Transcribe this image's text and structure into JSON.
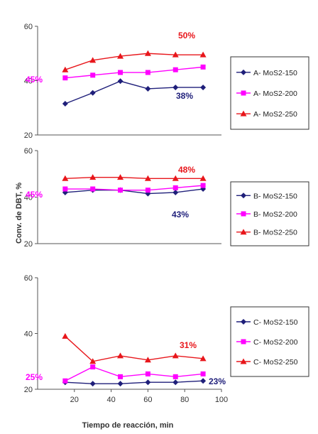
{
  "figure": {
    "ylabel": "Conv. de DBT, %",
    "xlabel": "Tiempo de reacción, min",
    "x_ticks": [
      "20",
      "40",
      "60",
      "80",
      "100"
    ]
  },
  "chart_data": [
    {
      "type": "line",
      "title": "",
      "xlim": [
        0,
        100
      ],
      "ylim": [
        20,
        60
      ],
      "yticks": [
        "60",
        "40",
        "20"
      ],
      "x": [
        15,
        30,
        45,
        60,
        75,
        90
      ],
      "series": [
        {
          "name": "A- MoS2-150",
          "color": "#1f1f7a",
          "marker": "diamond",
          "values": [
            31.5,
            35.5,
            39.8,
            37,
            37.5,
            37.5
          ]
        },
        {
          "name": "A- MoS2-200",
          "color": "#ff00ff",
          "marker": "square",
          "values": [
            41,
            42,
            43,
            43,
            44,
            45
          ]
        },
        {
          "name": "A- MoS2-250",
          "color": "#e8161b",
          "marker": "triangle",
          "values": [
            44,
            47.5,
            49,
            50,
            49.5,
            49.5
          ]
        }
      ],
      "annotations": [
        {
          "text": "50%",
          "color": "#e8161b"
        },
        {
          "text": "45%",
          "color": "#ff00ff"
        },
        {
          "text": "38%",
          "color": "#1f1f7a"
        }
      ]
    },
    {
      "type": "line",
      "title": "",
      "xlim": [
        0,
        100
      ],
      "ylim": [
        20,
        60
      ],
      "yticks": [
        "60",
        "40",
        "20"
      ],
      "x": [
        15,
        30,
        45,
        60,
        75,
        90
      ],
      "series": [
        {
          "name": "B- MoS2-150",
          "color": "#1f1f7a",
          "marker": "diamond",
          "values": [
            42,
            43,
            43,
            41.5,
            42,
            43.5
          ]
        },
        {
          "name": "B- MoS2-200",
          "color": "#ff00ff",
          "marker": "square",
          "values": [
            43.5,
            43.5,
            43,
            43,
            44,
            45
          ]
        },
        {
          "name": "B- MoS2-250",
          "color": "#e8161b",
          "marker": "triangle",
          "values": [
            48,
            48.5,
            48.5,
            48,
            48,
            48
          ]
        }
      ],
      "annotations": [
        {
          "text": "48%",
          "color": "#e8161b"
        },
        {
          "text": "45%",
          "color": "#ff00ff"
        },
        {
          "text": "43%",
          "color": "#1f1f7a"
        }
      ]
    },
    {
      "type": "line",
      "title": "",
      "xlim": [
        0,
        100
      ],
      "ylim": [
        20,
        60
      ],
      "yticks": [
        "60",
        "40",
        "20"
      ],
      "x": [
        15,
        30,
        45,
        60,
        75,
        90
      ],
      "series": [
        {
          "name": "C- MoS2-150",
          "color": "#1f1f7a",
          "marker": "diamond",
          "values": [
            22.5,
            22,
            22,
            22.5,
            22.5,
            23
          ]
        },
        {
          "name": "C- MoS2-200",
          "color": "#ff00ff",
          "marker": "square",
          "values": [
            23,
            28,
            24.5,
            25.5,
            24.5,
            25.5
          ]
        },
        {
          "name": "C- MoS2-250",
          "color": "#e8161b",
          "marker": "triangle",
          "values": [
            39,
            30,
            32,
            30.5,
            32,
            31
          ]
        }
      ],
      "annotations": [
        {
          "text": "31%",
          "color": "#e8161b"
        },
        {
          "text": "25%",
          "color": "#ff00ff"
        },
        {
          "text": "23%",
          "color": "#1f1f7a"
        }
      ]
    }
  ]
}
